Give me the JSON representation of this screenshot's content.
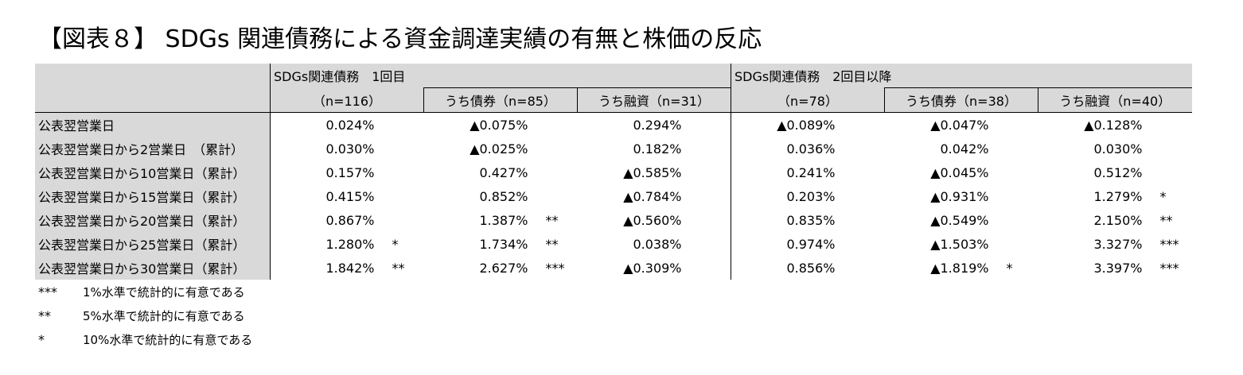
{
  "title": "【図表８】 SDGs 関連債務による資金調達実績の有無と株価の反応",
  "header": {
    "group1": "SDGs関連債務　1回目",
    "group2": "SDGs関連債務　2回目以降",
    "columns": [
      "（n=116）",
      "うち債券（n=85）",
      "うち融資（n=31）",
      "（n=78）",
      "うち債券（n=38）",
      "うち融資（n=40）"
    ]
  },
  "rows": [
    {
      "label": "公表翌営業日",
      "cells": [
        [
          "0.024%",
          ""
        ],
        [
          "▲0.075%",
          ""
        ],
        [
          "0.294%",
          ""
        ],
        [
          "▲0.089%",
          ""
        ],
        [
          "▲0.047%",
          ""
        ],
        [
          "▲0.128%",
          ""
        ]
      ]
    },
    {
      "label": "公表翌営業日から2営業日　（累計）",
      "cells": [
        [
          "0.030%",
          ""
        ],
        [
          "▲0.025%",
          ""
        ],
        [
          "0.182%",
          ""
        ],
        [
          "0.036%",
          ""
        ],
        [
          "0.042%",
          ""
        ],
        [
          "0.030%",
          ""
        ]
      ]
    },
    {
      "label": "公表翌営業日から10営業日（累計）",
      "cells": [
        [
          "0.157%",
          ""
        ],
        [
          "0.427%",
          ""
        ],
        [
          "▲0.585%",
          ""
        ],
        [
          "0.241%",
          ""
        ],
        [
          "▲0.045%",
          ""
        ],
        [
          "0.512%",
          ""
        ]
      ]
    },
    {
      "label": "公表翌営業日から15営業日（累計）",
      "cells": [
        [
          "0.415%",
          ""
        ],
        [
          "0.852%",
          ""
        ],
        [
          "▲0.784%",
          ""
        ],
        [
          "0.203%",
          ""
        ],
        [
          "▲0.931%",
          ""
        ],
        [
          "1.279%",
          "*"
        ]
      ]
    },
    {
      "label": "公表翌営業日から20営業日（累計）",
      "cells": [
        [
          "0.867%",
          ""
        ],
        [
          "1.387%",
          "**"
        ],
        [
          "▲0.560%",
          ""
        ],
        [
          "0.835%",
          ""
        ],
        [
          "▲0.549%",
          ""
        ],
        [
          "2.150%",
          "**"
        ]
      ]
    },
    {
      "label": "公表翌営業日から25営業日（累計）",
      "cells": [
        [
          "1.280%",
          "*"
        ],
        [
          "1.734%",
          "**"
        ],
        [
          "0.038%",
          ""
        ],
        [
          "0.974%",
          ""
        ],
        [
          "▲1.503%",
          ""
        ],
        [
          "3.327%",
          "***"
        ]
      ]
    },
    {
      "label": "公表翌営業日から30営業日（累計）",
      "cells": [
        [
          "1.842%",
          "**"
        ],
        [
          "2.627%",
          "***"
        ],
        [
          "▲0.309%",
          ""
        ],
        [
          "0.856%",
          ""
        ],
        [
          "▲1.819%",
          "*"
        ],
        [
          "3.397%",
          "***"
        ]
      ]
    }
  ],
  "notes": [
    {
      "mark": "***",
      "text": "1%水準で統計的に有意である"
    },
    {
      "mark": "**",
      "text": "5%水準で統計的に有意である"
    },
    {
      "mark": "*",
      "text": "10%水準で統計的に有意である"
    }
  ]
}
